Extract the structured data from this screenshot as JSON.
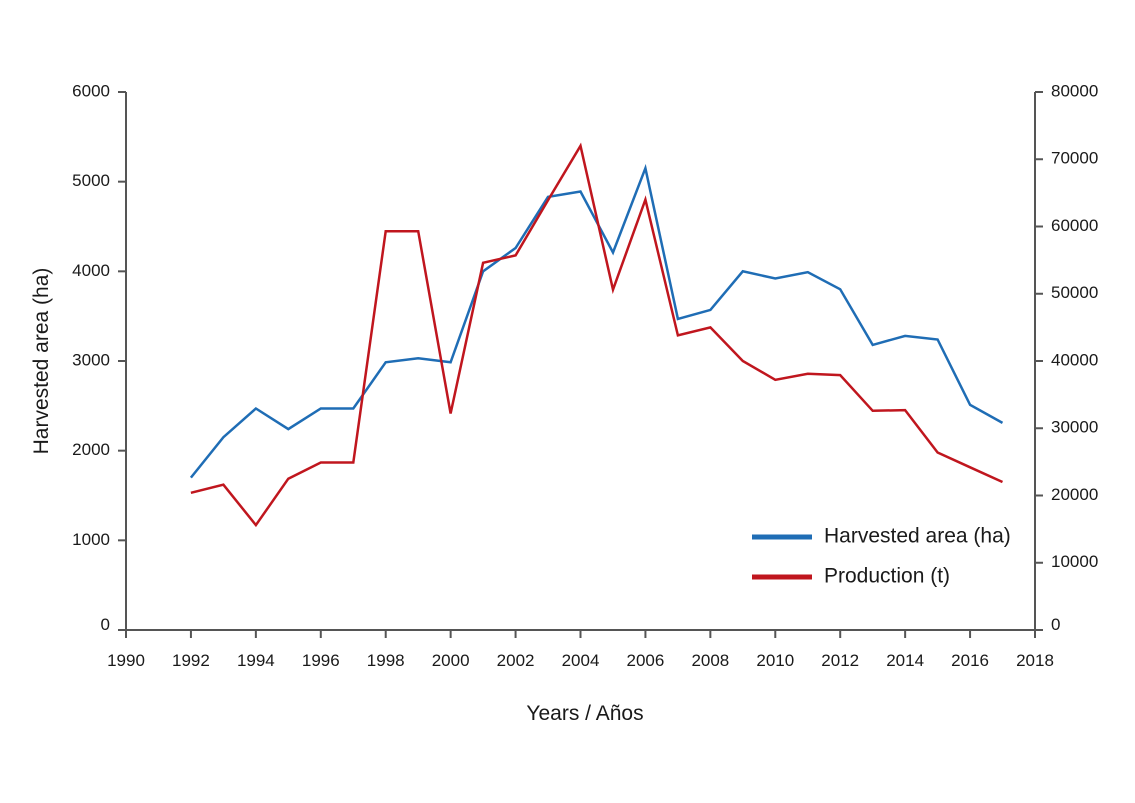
{
  "chart_data": {
    "type": "line",
    "title": "",
    "xlabel": "Years / Años",
    "ylabel": "Harvested area (ha)",
    "ylabel_right": "",
    "xlim": [
      1990,
      2018
    ],
    "x_ticks": [
      "1990",
      "1992",
      "1994",
      "1996",
      "1998",
      "2000",
      "2002",
      "2004",
      "2006",
      "2008",
      "2010",
      "2012",
      "2014",
      "2016",
      "2018"
    ],
    "ylim_left": [
      0,
      6000
    ],
    "y_left_ticks": [
      "0",
      "1000",
      "2000",
      "3000",
      "4000",
      "5000",
      "6000"
    ],
    "ylim_right": [
      0,
      80000
    ],
    "y_right_ticks": [
      "0",
      "10000",
      "20000",
      "30000",
      "40000",
      "50000",
      "60000",
      "70000",
      "80000"
    ],
    "grid": false,
    "legend_position": "bottom-right",
    "x": [
      1992,
      1993,
      1994,
      1995,
      1996,
      1997,
      1998,
      1999,
      2000,
      2001,
      2002,
      2003,
      2004,
      2005,
      2006,
      2007,
      2008,
      2009,
      2010,
      2011,
      2012,
      2013,
      2014,
      2015,
      2016,
      2017
    ],
    "series": [
      {
        "name": "Harvested area (ha)",
        "axis": "left",
        "color": "#1f6db5",
        "values": [
          1700,
          2150,
          2470,
          2240,
          2470,
          2470,
          2985,
          3030,
          2985,
          4000,
          4260,
          4830,
          4890,
          4210,
          5150,
          3470,
          3570,
          4000,
          3920,
          3990,
          3800,
          3180,
          3280,
          3240,
          2510,
          2310
        ]
      },
      {
        "name": "Production (t)",
        "axis": "right",
        "color": "#c0161e",
        "values": [
          20400,
          21600,
          15600,
          22500,
          24900,
          24900,
          59300,
          59300,
          32200,
          54600,
          55700,
          63900,
          72000,
          50600,
          64000,
          43800,
          45000,
          40000,
          37200,
          38100,
          37900,
          32600,
          32700,
          26400,
          24200,
          22000
        ]
      }
    ]
  }
}
